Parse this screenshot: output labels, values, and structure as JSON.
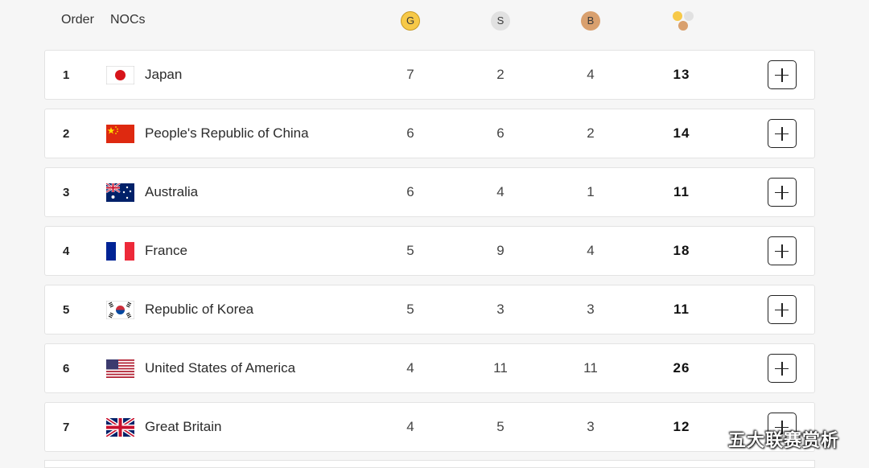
{
  "header": {
    "order_label": "Order",
    "noc_label": "NOCs",
    "gold": "G",
    "silver": "S",
    "bronze": "B"
  },
  "colors": {
    "gold": "#f7c948",
    "silver": "#e1e1e1",
    "bronze": "#d9a06e"
  },
  "rows": [
    {
      "rank": "1",
      "noc": "Japan",
      "flag": "japan-flag",
      "gold": "7",
      "silver": "2",
      "bronze": "4",
      "total": "13"
    },
    {
      "rank": "2",
      "noc": "People's Republic of China",
      "flag": "china-flag",
      "gold": "6",
      "silver": "6",
      "bronze": "2",
      "total": "14"
    },
    {
      "rank": "3",
      "noc": "Australia",
      "flag": "australia-flag",
      "gold": "6",
      "silver": "4",
      "bronze": "1",
      "total": "11"
    },
    {
      "rank": "4",
      "noc": "France",
      "flag": "france-flag",
      "gold": "5",
      "silver": "9",
      "bronze": "4",
      "total": "18"
    },
    {
      "rank": "5",
      "noc": "Republic of Korea",
      "flag": "korea-flag",
      "gold": "5",
      "silver": "3",
      "bronze": "3",
      "total": "11"
    },
    {
      "rank": "6",
      "noc": "United States of America",
      "flag": "usa-flag",
      "gold": "4",
      "silver": "11",
      "bronze": "11",
      "total": "26"
    },
    {
      "rank": "7",
      "noc": "Great Britain",
      "flag": "great-britain-flag",
      "gold": "4",
      "silver": "5",
      "bronze": "3",
      "total": "12"
    }
  ],
  "watermark": "五大联赛赏析"
}
